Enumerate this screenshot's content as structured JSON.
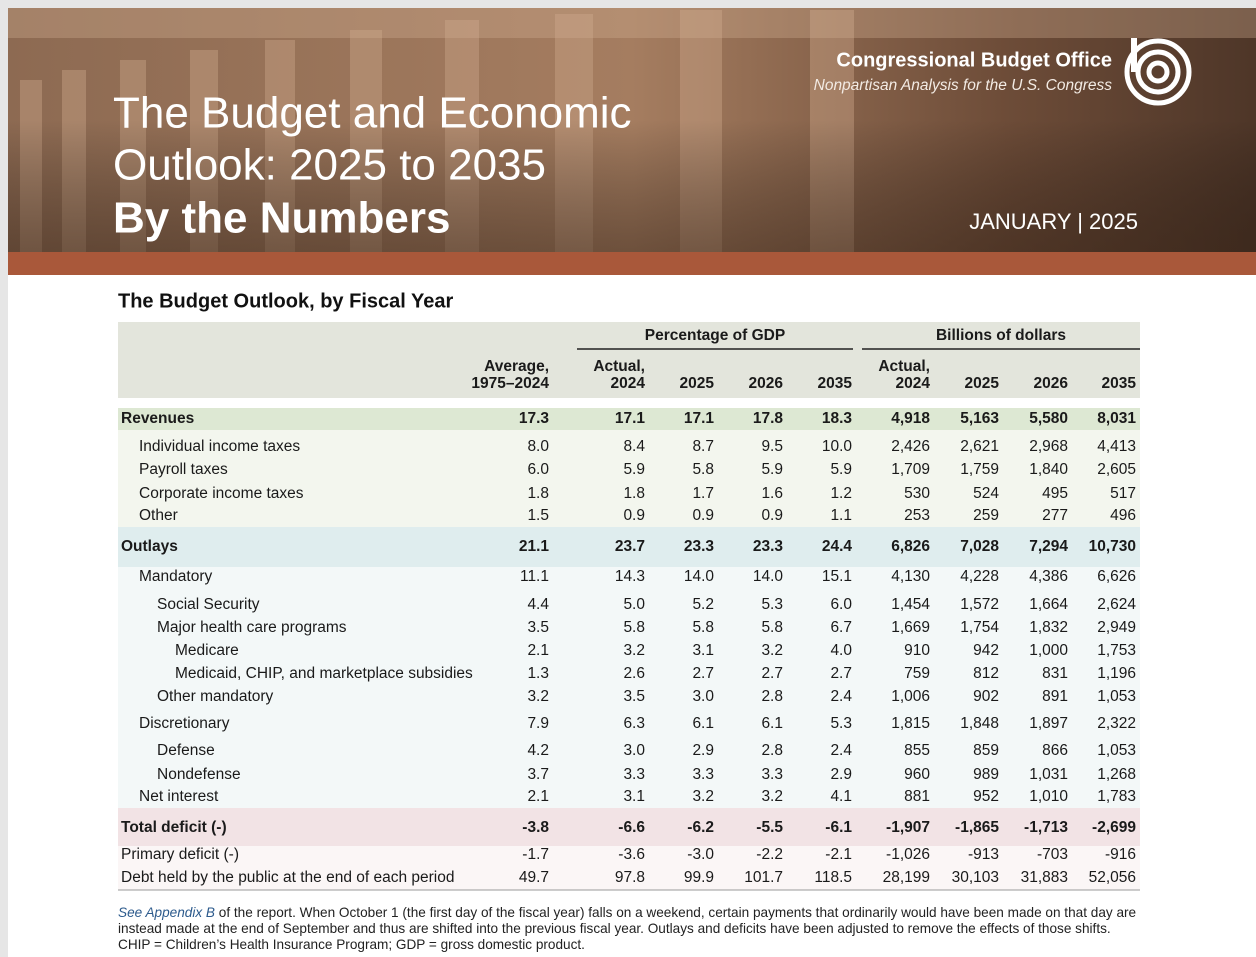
{
  "header": {
    "org": "Congressional Budget Office",
    "tagline": "Nonpartisan Analysis for the U.S. Congress",
    "title_lines": [
      "The Budget and Economic",
      "Outlook: 2025 to 2035"
    ],
    "subtitle": "By the Numbers",
    "date": "JANUARY | 2025"
  },
  "table": {
    "title": "The Budget Outlook, by Fiscal Year",
    "groups": [
      "Percentage of GDP",
      "Billions of dollars"
    ],
    "columns": [
      [
        "Average,",
        "1975–2024"
      ],
      [
        "Actual,",
        "2024"
      ],
      [
        "2025"
      ],
      [
        "2026"
      ],
      [
        "2035"
      ],
      [
        "Actual,",
        "2024"
      ],
      [
        "2025"
      ],
      [
        "2026"
      ],
      [
        "2035"
      ]
    ],
    "rows": [
      {
        "label": "Revenues",
        "cells": [
          "17.3",
          "17.1",
          "17.1",
          "17.8",
          "18.3",
          "4,918",
          "5,163",
          "5,580",
          "8,031"
        ]
      },
      {
        "label": "Individual income taxes",
        "cells": [
          "8.0",
          "8.4",
          "8.7",
          "9.5",
          "10.0",
          "2,426",
          "2,621",
          "2,968",
          "4,413"
        ]
      },
      {
        "label": "Payroll taxes",
        "cells": [
          "6.0",
          "5.9",
          "5.8",
          "5.9",
          "5.9",
          "1,709",
          "1,759",
          "1,840",
          "2,605"
        ]
      },
      {
        "label": "Corporate income taxes",
        "cells": [
          "1.8",
          "1.8",
          "1.7",
          "1.6",
          "1.2",
          "530",
          "524",
          "495",
          "517"
        ]
      },
      {
        "label": "Other",
        "cells": [
          "1.5",
          "0.9",
          "0.9",
          "0.9",
          "1.1",
          "253",
          "259",
          "277",
          "496"
        ]
      },
      {
        "label": "Outlays",
        "cells": [
          "21.1",
          "23.7",
          "23.3",
          "23.3",
          "24.4",
          "6,826",
          "7,028",
          "7,294",
          "10,730"
        ]
      },
      {
        "label": "Mandatory",
        "cells": [
          "11.1",
          "14.3",
          "14.0",
          "14.0",
          "15.1",
          "4,130",
          "4,228",
          "4,386",
          "6,626"
        ]
      },
      {
        "label": "Social Security",
        "cells": [
          "4.4",
          "5.0",
          "5.2",
          "5.3",
          "6.0",
          "1,454",
          "1,572",
          "1,664",
          "2,624"
        ]
      },
      {
        "label": "Major health care programs",
        "cells": [
          "3.5",
          "5.8",
          "5.8",
          "5.8",
          "6.7",
          "1,669",
          "1,754",
          "1,832",
          "2,949"
        ]
      },
      {
        "label": "Medicare",
        "cells": [
          "2.1",
          "3.2",
          "3.1",
          "3.2",
          "4.0",
          "910",
          "942",
          "1,000",
          "1,753"
        ]
      },
      {
        "label": "Medicaid, CHIP, and marketplace subsidies",
        "cells": [
          "1.3",
          "2.6",
          "2.7",
          "2.7",
          "2.7",
          "759",
          "812",
          "831",
          "1,196"
        ]
      },
      {
        "label": "Other mandatory",
        "cells": [
          "3.2",
          "3.5",
          "3.0",
          "2.8",
          "2.4",
          "1,006",
          "902",
          "891",
          "1,053"
        ]
      },
      {
        "label": "Discretionary",
        "cells": [
          "7.9",
          "6.3",
          "6.1",
          "6.1",
          "5.3",
          "1,815",
          "1,848",
          "1,897",
          "2,322"
        ]
      },
      {
        "label": "Defense",
        "cells": [
          "4.2",
          "3.0",
          "2.9",
          "2.8",
          "2.4",
          "855",
          "859",
          "866",
          "1,053"
        ]
      },
      {
        "label": "Nondefense",
        "cells": [
          "3.7",
          "3.3",
          "3.3",
          "3.3",
          "2.9",
          "960",
          "989",
          "1,031",
          "1,268"
        ]
      },
      {
        "label": "Net interest",
        "cells": [
          "2.1",
          "3.1",
          "3.2",
          "3.2",
          "4.1",
          "881",
          "952",
          "1,010",
          "1,783"
        ]
      },
      {
        "label": "Total deficit (-)",
        "cells": [
          "-3.8",
          "-6.6",
          "-6.2",
          "-5.5",
          "-6.1",
          "-1,907",
          "-1,865",
          "-1,713",
          "-2,699"
        ]
      },
      {
        "label": "Primary deficit (-)",
        "cells": [
          "-1.7",
          "-3.6",
          "-3.0",
          "-2.2",
          "-2.1",
          "-1,026",
          "-913",
          "-703",
          "-916"
        ]
      },
      {
        "label": "Debt held by the public at the end of each period",
        "cells": [
          "49.7",
          "97.8",
          "99.9",
          "101.7",
          "118.5",
          "28,199",
          "30,103",
          "31,883",
          "52,056"
        ]
      }
    ]
  },
  "footnote": {
    "link": "See Appendix B",
    "text": "of the report. When October 1 (the first day of the fiscal year) falls on a weekend, certain payments that ordinarily would have been made on that day are instead made at the end of September and thus are shifted into the previous fiscal year. Outlays and deficits have been adjusted to remove the effects of those shifts. CHIP = Children’s Health Insurance Program; GDP = gross domestic product."
  }
}
